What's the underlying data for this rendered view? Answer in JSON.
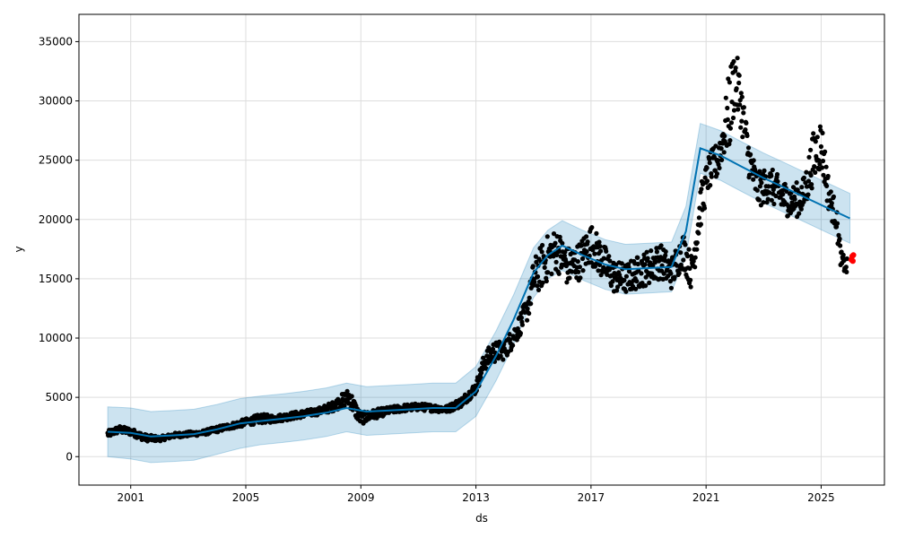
{
  "chart_data": {
    "type": "line",
    "xlabel": "ds",
    "ylabel": "y",
    "xlim": [
      1999.2,
      2027.2
    ],
    "ylim": [
      -2400,
      37300
    ],
    "xticks": [
      2001,
      2005,
      2009,
      2013,
      2017,
      2021,
      2025
    ],
    "xtick_labels": [
      "2001",
      "2005",
      "2009",
      "2013",
      "2017",
      "2021",
      "2025"
    ],
    "yticks": [
      0,
      5000,
      10000,
      15000,
      20000,
      25000,
      30000,
      35000
    ],
    "ytick_labels": [
      "0",
      "5000",
      "10000",
      "15000",
      "20000",
      "25000",
      "30000",
      "35000"
    ],
    "grid": true,
    "colors": {
      "forecast": "#0072B2",
      "band": "#0072B2",
      "observed": "#000000",
      "highlight": "#ff0000"
    },
    "forecast": {
      "x": [
        2000.2,
        2001.0,
        2001.7,
        2002.5,
        2003.2,
        2004.0,
        2004.8,
        2005.5,
        2006.3,
        2007.0,
        2007.8,
        2008.5,
        2009.2,
        2010.0,
        2010.8,
        2011.5,
        2012.3,
        2013.0,
        2013.7,
        2014.3,
        2015.0,
        2015.5,
        2016.0,
        2016.7,
        2017.5,
        2018.2,
        2019.0,
        2019.8,
        2020.3,
        2020.8,
        2021.5,
        2022.2,
        2023.0,
        2023.8,
        2024.5,
        2025.2,
        2026.0
      ],
      "yhat": [
        2100,
        2000,
        1700,
        1800,
        1900,
        2300,
        2800,
        3000,
        3200,
        3400,
        3700,
        4100,
        3800,
        3900,
        4000,
        4100,
        4100,
        5500,
        8500,
        11500,
        15500,
        17000,
        17800,
        17000,
        16200,
        15800,
        15900,
        16000,
        19000,
        26000,
        25400,
        24500,
        23500,
        22600,
        21800,
        21000,
        20100
      ],
      "lower": [
        0,
        -200,
        -500,
        -400,
        -300,
        200,
        700,
        1000,
        1200,
        1400,
        1700,
        2100,
        1800,
        1900,
        2000,
        2100,
        2100,
        3400,
        6400,
        9400,
        13400,
        15000,
        15700,
        14900,
        14100,
        13700,
        13800,
        13900,
        16900,
        23900,
        23300,
        22400,
        21400,
        20500,
        19700,
        18900,
        18000
      ],
      "upper": [
        4200,
        4100,
        3800,
        3900,
        4000,
        4400,
        4900,
        5100,
        5300,
        5500,
        5800,
        6200,
        5900,
        6000,
        6100,
        6200,
        6200,
        7600,
        10600,
        13600,
        17600,
        19100,
        19900,
        19100,
        18300,
        17900,
        18000,
        18100,
        21100,
        28100,
        27500,
        26600,
        25600,
        24700,
        23900,
        23100,
        22200
      ]
    },
    "observed_trend": {
      "x": [
        2000.2,
        2000.6,
        2001.0,
        2001.5,
        2002.0,
        2002.5,
        2003.0,
        2003.5,
        2004.0,
        2004.5,
        2005.0,
        2005.5,
        2006.0,
        2006.5,
        2007.0,
        2007.5,
        2008.0,
        2008.4,
        2008.6,
        2008.8,
        2009.0,
        2009.5,
        2010.0,
        2010.5,
        2011.0,
        2011.5,
        2012.0,
        2012.5,
        2013.0,
        2013.3,
        2013.6,
        2014.0,
        2014.4,
        2014.8,
        2015.0,
        2015.4,
        2015.8,
        2016.2,
        2016.6,
        2017.0,
        2017.4,
        2017.8,
        2018.2,
        2018.6,
        2019.0,
        2019.4,
        2019.8,
        2020.2,
        2020.5,
        2020.8,
        2021.1,
        2021.4,
        2021.6,
        2021.8,
        2022.0,
        2022.2,
        2022.5,
        2022.8,
        2023.2,
        2023.6,
        2024.0,
        2024.4,
        2024.7,
        2025.0,
        2025.3,
        2025.5,
        2025.7,
        2025.9
      ],
      "values": [
        1900,
        2300,
        2100,
        1600,
        1500,
        1800,
        1900,
        2000,
        2300,
        2600,
        2900,
        3200,
        3200,
        3400,
        3600,
        3800,
        4200,
        4800,
        5000,
        4000,
        3200,
        3600,
        3900,
        4100,
        4200,
        4100,
        4000,
        4600,
        5800,
        8000,
        8800,
        9000,
        10500,
        12500,
        15000,
        16500,
        17500,
        16000,
        16500,
        18000,
        16500,
        15200,
        15000,
        15500,
        16000,
        16500,
        15500,
        17500,
        15500,
        21000,
        24000,
        25000,
        27000,
        29000,
        32000,
        30000,
        25000,
        22500,
        23000,
        22000,
        21500,
        22000,
        25000,
        26500,
        21500,
        20500,
        16500,
        16000
      ],
      "spread": [
        300,
        300,
        300,
        300,
        200,
        200,
        200,
        200,
        250,
        250,
        300,
        400,
        300,
        300,
        300,
        300,
        400,
        600,
        800,
        700,
        500,
        400,
        300,
        300,
        300,
        300,
        300,
        400,
        500,
        800,
        900,
        800,
        900,
        1000,
        1600,
        2000,
        1800,
        1700,
        1600,
        1700,
        1600,
        1400,
        1300,
        1400,
        1500,
        1500,
        1400,
        1500,
        1500,
        1800,
        1500,
        1600,
        1800,
        3500,
        2800,
        2200,
        1600,
        1500,
        1500,
        1500,
        1400,
        1600,
        2200,
        2200,
        1300,
        1200,
        800,
        700
      ]
    },
    "highlight_points": [
      {
        "x": 2026.05,
        "y": 16600
      },
      {
        "x": 2026.08,
        "y": 16900
      },
      {
        "x": 2026.1,
        "y": 16500
      },
      {
        "x": 2026.12,
        "y": 17000
      }
    ]
  }
}
